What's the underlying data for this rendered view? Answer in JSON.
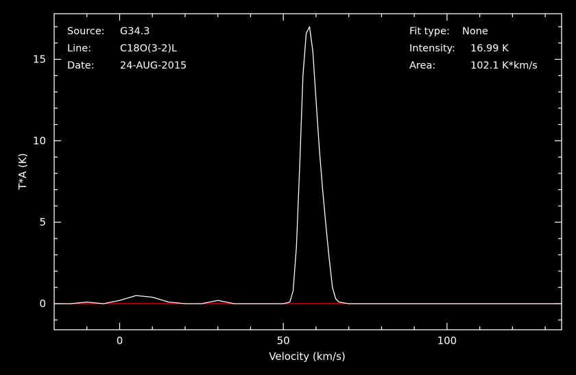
{
  "info_left": [
    {
      "label": "Source:",
      "value": "G34.3"
    },
    {
      "label": "Line:",
      "value": "C18O(3-2)L"
    },
    {
      "label": "Date:",
      "value": "24-AUG-2015"
    }
  ],
  "info_right": [
    {
      "label": "Fit type:",
      "value": "None"
    },
    {
      "label": "Intensity:",
      "value": "16.99 K"
    },
    {
      "label": "Area:",
      "value": "102.1 K*km/s"
    }
  ],
  "colors": {
    "background": "#000000",
    "frame": "#ffffff",
    "spectrum": "#ffffff",
    "baseline": "#ff0000"
  },
  "chart_data": {
    "type": "line",
    "xlabel": "Velocity (km/s)",
    "ylabel": "T*A (K)",
    "xlim": [
      -20,
      135
    ],
    "ylim": [
      -1.6,
      17.8
    ],
    "xticks": [
      0,
      50,
      100
    ],
    "yticks": [
      0,
      5,
      10,
      15
    ],
    "grid": false,
    "baseline_y": 0,
    "series": [
      {
        "x": [
          -20,
          -15,
          -10,
          -5,
          0,
          5,
          10,
          15,
          20,
          25,
          30,
          35,
          40,
          45,
          50,
          52,
          53,
          54,
          55,
          56,
          57,
          58,
          59,
          60,
          61,
          62,
          63,
          64,
          65,
          66,
          67,
          70,
          75,
          80,
          90,
          100,
          110,
          120,
          130,
          135
        ],
        "y": [
          0,
          0,
          0.1,
          0,
          0.2,
          0.5,
          0.4,
          0.1,
          0,
          0,
          0.2,
          0,
          0,
          0,
          0,
          0.1,
          0.8,
          3.5,
          8.5,
          14.0,
          16.6,
          17.0,
          15.5,
          12.5,
          9.5,
          7.0,
          4.8,
          2.8,
          1.0,
          0.3,
          0.1,
          0,
          0,
          0,
          0,
          0,
          0,
          0,
          0,
          0
        ]
      }
    ]
  }
}
